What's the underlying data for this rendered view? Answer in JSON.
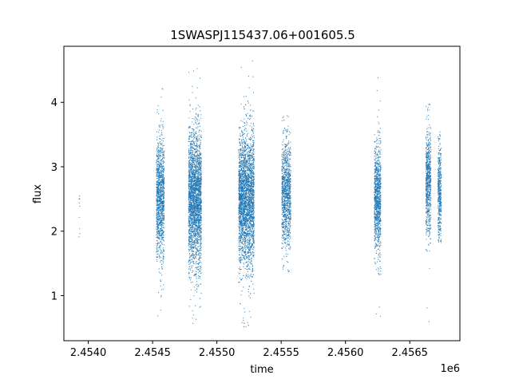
{
  "chart_data": {
    "type": "scatter",
    "title": "1SWASPJ115437.06+001605.5",
    "xlabel": "time",
    "ylabel": "flux",
    "x_offset_label": "1e6",
    "xlim": [
      2453810,
      2456890
    ],
    "ylim": [
      0.3,
      4.87
    ],
    "x_ticks": [
      2454000,
      2454500,
      2455000,
      2455500,
      2456000,
      2456500
    ],
    "x_tick_labels": [
      "2.4540",
      "2.4545",
      "2.4550",
      "2.4555",
      "2.4560",
      "2.4565"
    ],
    "y_ticks": [
      1,
      2,
      3,
      4
    ],
    "y_tick_labels": [
      "1",
      "2",
      "3",
      "4"
    ],
    "grid": false,
    "point_color": "#1f77b4",
    "series": [
      {
        "clusters": [
          {
            "x_range": [
              2453925,
              2453935
            ],
            "y_median": 2.4,
            "y_spread": 0.35,
            "y_min": 1.9,
            "y_max": 3.05,
            "density": 10
          },
          {
            "x_range": [
              2454530,
              2454590
            ],
            "y_median": 2.5,
            "y_spread": 0.45,
            "y_min": 0.5,
            "y_max": 4.4,
            "density": 1200
          },
          {
            "x_range": [
              2454780,
              2454880
            ],
            "y_median": 2.5,
            "y_spread": 0.5,
            "y_min": 0.55,
            "y_max": 4.55,
            "density": 2600
          },
          {
            "x_range": [
              2455170,
              2455290
            ],
            "y_median": 2.5,
            "y_spread": 0.5,
            "y_min": 0.5,
            "y_max": 4.65,
            "density": 3200
          },
          {
            "x_range": [
              2455505,
              2455575
            ],
            "y_median": 2.6,
            "y_spread": 0.4,
            "y_min": 0.95,
            "y_max": 3.8,
            "density": 1100
          },
          {
            "x_range": [
              2456225,
              2456275
            ],
            "y_median": 2.5,
            "y_spread": 0.4,
            "y_min": 0.6,
            "y_max": 4.65,
            "density": 1000
          },
          {
            "x_range": [
              2456625,
              2456665
            ],
            "y_median": 2.75,
            "y_spread": 0.4,
            "y_min": 0.55,
            "y_max": 4.6,
            "density": 700
          },
          {
            "x_range": [
              2456720,
              2456745
            ],
            "y_median": 2.6,
            "y_spread": 0.35,
            "y_min": 1.8,
            "y_max": 3.55,
            "density": 450
          }
        ]
      }
    ]
  }
}
